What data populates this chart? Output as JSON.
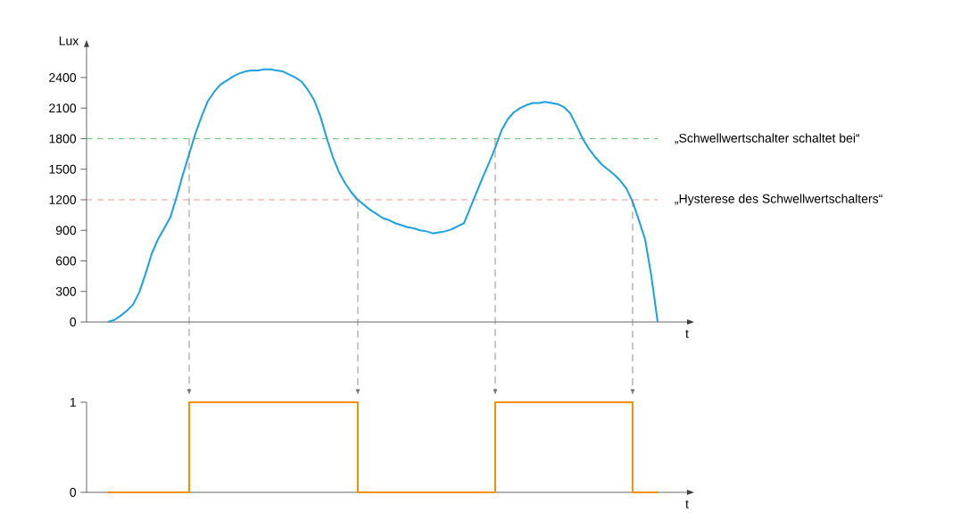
{
  "chart_data": [
    {
      "type": "line",
      "ylabel": "Lux",
      "xlabel": "t",
      "categories": [
        null,
        null,
        null,
        null,
        null,
        null,
        null,
        null,
        null,
        null,
        null,
        null,
        null,
        null,
        null,
        null,
        null,
        null,
        null,
        null,
        null,
        null,
        null,
        null,
        null,
        null,
        null,
        null,
        null,
        null,
        null,
        null,
        null,
        null,
        null,
        null,
        null,
        null,
        null,
        null,
        null,
        null,
        null,
        null,
        null,
        null,
        null,
        null,
        null,
        null,
        null,
        null,
        null,
        null,
        null,
        null,
        null,
        null,
        null,
        null,
        null,
        null,
        null,
        null,
        null,
        null,
        null,
        null,
        null,
        null,
        null,
        null,
        null,
        null,
        null,
        null,
        null,
        null,
        null,
        null,
        null,
        null,
        null,
        null,
        null,
        null,
        null,
        null,
        null
      ],
      "series": [
        {
          "color": "#1ba1e2",
          "values": [
            0,
            20,
            60,
            110,
            170,
            290,
            470,
            670,
            810,
            920,
            1030,
            1230,
            1450,
            1650,
            1850,
            2020,
            2170,
            2260,
            2330,
            2370,
            2410,
            2440,
            2460,
            2470,
            2470,
            2480,
            2480,
            2470,
            2460,
            2430,
            2400,
            2360,
            2280,
            2180,
            2020,
            1810,
            1620,
            1470,
            1360,
            1270,
            1200,
            1150,
            1100,
            1060,
            1020,
            1000,
            970,
            950,
            930,
            920,
            900,
            890,
            870,
            880,
            890,
            910,
            940,
            970,
            1120,
            1270,
            1420,
            1560,
            1710,
            1880,
            1990,
            2060,
            2100,
            2130,
            2150,
            2150,
            2160,
            2150,
            2140,
            2110,
            2050,
            1930,
            1800,
            1700,
            1620,
            1550,
            1500,
            1450,
            1390,
            1310,
            1180,
            1000,
            810,
            450,
            0
          ]
        }
      ],
      "ylim": [
        0,
        2700
      ],
      "yticks": [
        0,
        300,
        600,
        900,
        1200,
        1500,
        1800,
        2100,
        2400
      ],
      "ref_lines": [
        {
          "axis": "y",
          "value": 1800,
          "label": "„Schwellwertschalter schaltet bei“",
          "color": "#3dba4e",
          "line_style": "dashed"
        },
        {
          "axis": "y",
          "value": 1200,
          "label": "„Hysterese des Schwellwertschalters“",
          "color": "#e8787a",
          "line_style": "dashed"
        }
      ]
    },
    {
      "type": "step",
      "xlabel": "t",
      "categories": [
        null,
        null,
        null,
        null,
        null,
        null,
        null,
        null,
        null,
        null,
        null,
        null,
        null,
        null,
        null,
        null,
        null,
        null,
        null,
        null,
        null,
        null,
        null,
        null,
        null,
        null,
        null,
        null,
        null,
        null,
        null,
        null,
        null,
        null,
        null,
        null,
        null,
        null,
        null,
        null,
        null,
        null,
        null,
        null,
        null,
        null,
        null,
        null,
        null,
        null,
        null,
        null,
        null,
        null,
        null,
        null,
        null,
        null,
        null,
        null,
        null,
        null,
        null,
        null,
        null,
        null,
        null,
        null,
        null,
        null,
        null,
        null,
        null,
        null,
        null,
        null,
        null,
        null,
        null,
        null,
        null,
        null,
        null,
        null,
        null,
        null,
        null,
        null,
        null
      ],
      "series": [
        {
          "color": "#f39200",
          "values": [
            0,
            0,
            0,
            0,
            0,
            0,
            0,
            0,
            0,
            0,
            0,
            0,
            0,
            1,
            1,
            1,
            1,
            1,
            1,
            1,
            1,
            1,
            1,
            1,
            1,
            1,
            1,
            1,
            1,
            1,
            1,
            1,
            1,
            1,
            1,
            1,
            1,
            1,
            1,
            1,
            0,
            0,
            0,
            0,
            0,
            0,
            0,
            0,
            0,
            0,
            0,
            0,
            0,
            0,
            0,
            0,
            0,
            0,
            0,
            0,
            0,
            0,
            1,
            1,
            1,
            1,
            1,
            1,
            1,
            1,
            1,
            1,
            1,
            1,
            1,
            1,
            1,
            1,
            1,
            1,
            1,
            1,
            1,
            1,
            0,
            0,
            0,
            0,
            0
          ]
        }
      ],
      "ylim": [
        0,
        1
      ],
      "yticks": [
        0,
        1
      ]
    }
  ]
}
